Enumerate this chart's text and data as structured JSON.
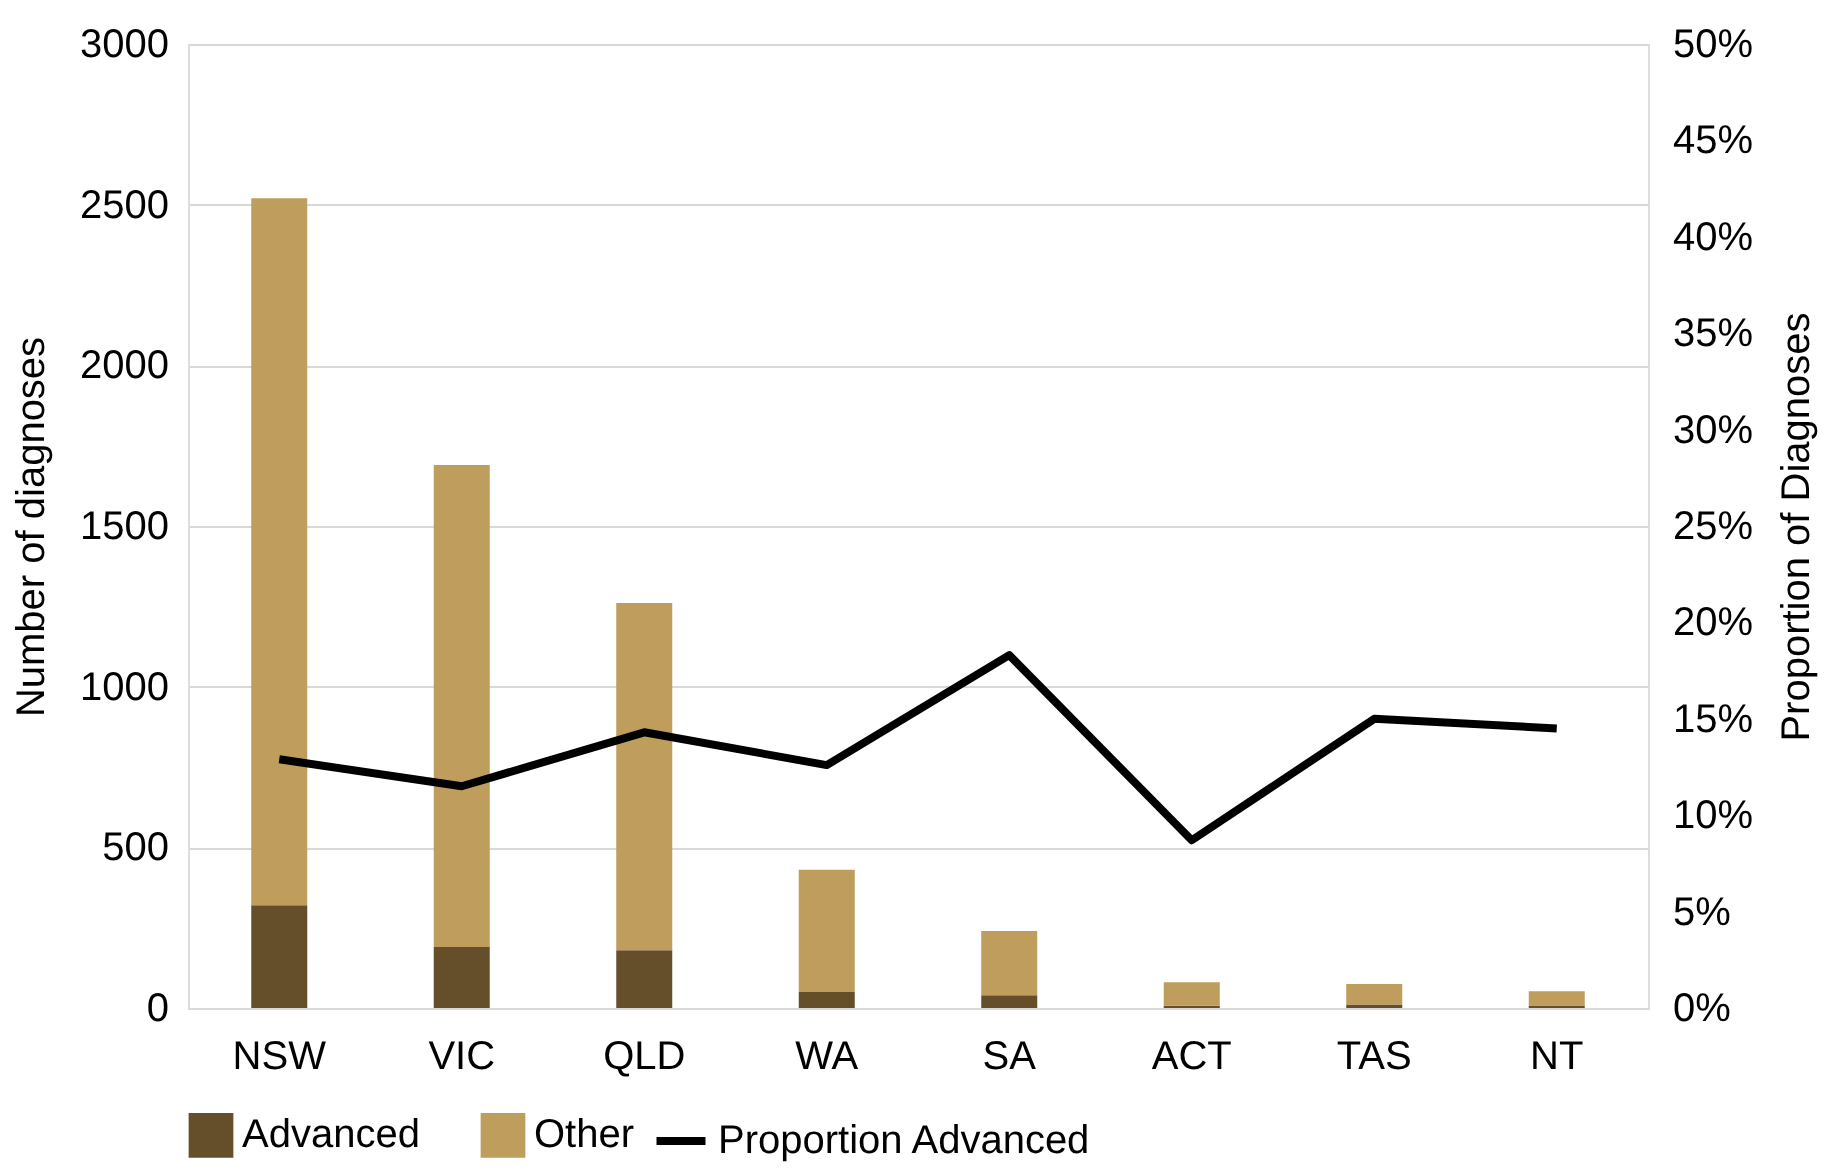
{
  "chart_data": {
    "type": "bar",
    "stacked": true,
    "categories": [
      "NSW",
      "VIC",
      "QLD",
      "WA",
      "SA",
      "ACT",
      "TAS",
      "NT"
    ],
    "ylabel": "Number of diagnoses",
    "y2label": "Proportion of Diagnoses",
    "ylim": [
      0,
      3000
    ],
    "yticks": [
      0,
      500,
      1000,
      1500,
      2000,
      2500,
      3000
    ],
    "y2lim": [
      0,
      50
    ],
    "y2ticks": [
      {
        "value": 0,
        "label": "0%"
      },
      {
        "value": 5,
        "label": "5%"
      },
      {
        "value": 10,
        "label": "10%"
      },
      {
        "value": 15,
        "label": "15%"
      },
      {
        "value": 20,
        "label": "20%"
      },
      {
        "value": 25,
        "label": "25%"
      },
      {
        "value": 30,
        "label": "30%"
      },
      {
        "value": 35,
        "label": "35%"
      },
      {
        "value": 40,
        "label": "40%"
      },
      {
        "value": 45,
        "label": "45%"
      },
      {
        "value": 50,
        "label": "50%"
      }
    ],
    "grid": "y",
    "legend": "bottom",
    "series": [
      {
        "name": "Advanced",
        "color": "#654f2a",
        "values": [
          320,
          190,
          180,
          50,
          40,
          7,
          11,
          8
        ]
      },
      {
        "name": "Other",
        "color": "#bf9d5c",
        "values": [
          2200,
          1500,
          1080,
          380,
          200,
          73,
          64,
          44
        ]
      },
      {
        "name": "Proportion Advanced",
        "type": "line",
        "axis": "y2",
        "color": "#000000",
        "values": [
          12.9,
          11.5,
          14.3,
          12.6,
          18.3,
          8.7,
          15.0,
          14.5
        ]
      }
    ]
  }
}
